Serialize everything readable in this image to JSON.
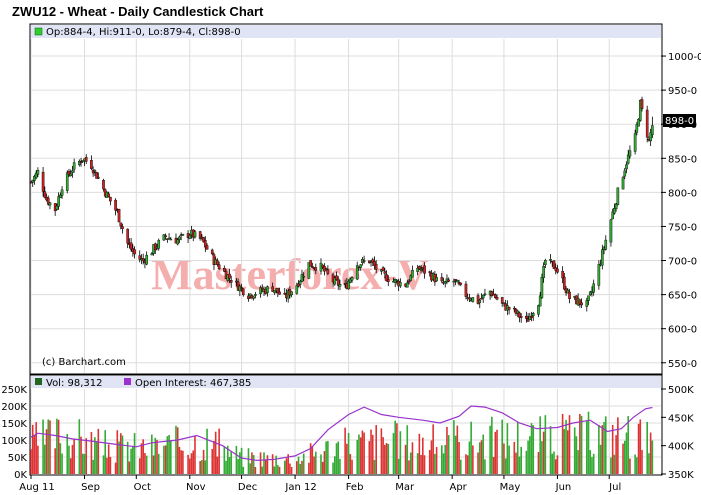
{
  "title": "ZWU12 - Wheat - Daily Candlestick Chart",
  "ohlc_label": "Op:884-4, Hi:911-0, Lo:879-4, Cl:898-0",
  "copyright": "(c) Barchart.com",
  "watermark": "Masterforex-V",
  "last_price_label": "898-0",
  "volume_label": "Vol: 98,312",
  "open_interest_label": "Open Interest: 467,385",
  "colors": {
    "up": "#33aa33",
    "down": "#cc2222",
    "volume_up": "#33aa33",
    "volume_down": "#dd3333",
    "open_interest": "#9933cc",
    "header_band": "#e0e4f4",
    "watermark": "#f4a0a0"
  },
  "chart_data": [
    {
      "type": "candlestick",
      "title": "ZWU12 - Wheat - Daily Candlestick Chart",
      "x_ticks": [
        "Aug 11",
        "Sep",
        "Oct",
        "Nov",
        "Dec",
        "Jan 12",
        "Feb",
        "Mar",
        "Apr",
        "May",
        "Jun",
        "Jul"
      ],
      "y_ticks": [
        "550-0",
        "600-0",
        "650-0",
        "700-0",
        "750-0",
        "800-0",
        "850-0",
        "900-0",
        "950-0",
        "1000-0"
      ],
      "ylim": [
        535,
        1025
      ],
      "axis_side": "right",
      "close_path": [
        [
          "2011-08-01",
          815
        ],
        [
          "2011-08-05",
          830
        ],
        [
          "2011-08-10",
          790
        ],
        [
          "2011-08-15",
          775
        ],
        [
          "2011-08-19",
          810
        ],
        [
          "2011-08-25",
          835
        ],
        [
          "2011-08-31",
          850
        ],
        [
          "2011-09-05",
          840
        ],
        [
          "2011-09-12",
          805
        ],
        [
          "2011-09-20",
          770
        ],
        [
          "2011-09-26",
          725
        ],
        [
          "2011-10-01",
          705
        ],
        [
          "2011-10-05",
          700
        ],
        [
          "2011-10-12",
          720
        ],
        [
          "2011-10-18",
          735
        ],
        [
          "2011-10-25",
          730
        ],
        [
          "2011-11-01",
          740
        ],
        [
          "2011-11-08",
          730
        ],
        [
          "2011-11-15",
          700
        ],
        [
          "2011-11-22",
          680
        ],
        [
          "2011-11-28",
          665
        ],
        [
          "2011-12-05",
          650
        ],
        [
          "2011-12-12",
          655
        ],
        [
          "2011-12-19",
          660
        ],
        [
          "2011-12-26",
          645
        ],
        [
          "2012-01-02",
          665
        ],
        [
          "2012-01-09",
          695
        ],
        [
          "2012-01-16",
          690
        ],
        [
          "2012-01-23",
          670
        ],
        [
          "2012-01-30",
          660
        ],
        [
          "2012-02-06",
          695
        ],
        [
          "2012-02-13",
          700
        ],
        [
          "2012-02-20",
          680
        ],
        [
          "2012-02-27",
          670
        ],
        [
          "2012-03-05",
          665
        ],
        [
          "2012-03-12",
          690
        ],
        [
          "2012-03-19",
          680
        ],
        [
          "2012-03-26",
          665
        ],
        [
          "2012-04-02",
          670
        ],
        [
          "2012-04-09",
          650
        ],
        [
          "2012-04-16",
          640
        ],
        [
          "2012-04-23",
          655
        ],
        [
          "2012-04-30",
          635
        ],
        [
          "2012-05-07",
          625
        ],
        [
          "2012-05-14",
          610
        ],
        [
          "2012-05-21",
          640
        ],
        [
          "2012-05-25",
          700
        ],
        [
          "2012-05-31",
          690
        ],
        [
          "2012-06-04",
          670
        ],
        [
          "2012-06-08",
          645
        ],
        [
          "2012-06-13",
          640
        ],
        [
          "2012-06-18",
          635
        ],
        [
          "2012-06-21",
          655
        ],
        [
          "2012-06-26",
          700
        ],
        [
          "2012-07-02",
          760
        ],
        [
          "2012-07-06",
          800
        ],
        [
          "2012-07-11",
          845
        ],
        [
          "2012-07-16",
          880
        ],
        [
          "2012-07-19",
          930
        ],
        [
          "2012-07-24",
          875
        ],
        [
          "2012-07-26",
          898
        ]
      ],
      "last": {
        "open": 884.5,
        "high": 911,
        "low": 879.5,
        "close": 898
      }
    },
    {
      "type": "bar+line",
      "x_ticks": [
        "Aug 11",
        "Sep",
        "Oct",
        "Nov",
        "Dec",
        "Jan 12",
        "Feb",
        "Mar",
        "Apr",
        "May",
        "Jun",
        "Jul"
      ],
      "left_axis_ticks": [
        "0K",
        "50K",
        "100K",
        "150K",
        "200K",
        "250K"
      ],
      "right_axis_ticks": [
        "350K",
        "400K",
        "450K",
        "500K"
      ],
      "volume_ylim": [
        0,
        250000
      ],
      "open_interest_ylim": [
        350000,
        500000
      ],
      "volume_level_path": [
        [
          "2011-08-01",
          100000
        ],
        [
          "2011-08-20",
          130000
        ],
        [
          "2011-09-10",
          90000
        ],
        [
          "2011-10-10",
          85000
        ],
        [
          "2011-11-10",
          110000
        ],
        [
          "2011-12-01",
          55000
        ],
        [
          "2012-01-01",
          50000
        ],
        [
          "2012-01-25",
          90000
        ],
        [
          "2012-02-20",
          110000
        ],
        [
          "2012-03-20",
          100000
        ],
        [
          "2012-04-20",
          115000
        ],
        [
          "2012-05-20",
          120000
        ],
        [
          "2012-06-15",
          125000
        ],
        [
          "2012-07-15",
          130000
        ],
        [
          "2012-07-26",
          98312
        ]
      ],
      "open_interest": [
        [
          "2011-08-01",
          415000
        ],
        [
          "2011-08-05",
          422000
        ],
        [
          "2011-08-15",
          418000
        ],
        [
          "2011-08-25",
          412000
        ],
        [
          "2011-09-05",
          408000
        ],
        [
          "2011-09-20",
          402000
        ],
        [
          "2011-10-01",
          398000
        ],
        [
          "2011-10-10",
          405000
        ],
        [
          "2011-10-25",
          410000
        ],
        [
          "2011-11-05",
          418000
        ],
        [
          "2011-11-20",
          400000
        ],
        [
          "2011-12-01",
          378000
        ],
        [
          "2011-12-10",
          374000
        ],
        [
          "2011-12-20",
          376000
        ],
        [
          "2012-01-01",
          382000
        ],
        [
          "2012-01-10",
          395000
        ],
        [
          "2012-01-20",
          428000
        ],
        [
          "2012-02-01",
          455000
        ],
        [
          "2012-02-10",
          468000
        ],
        [
          "2012-02-20",
          455000
        ],
        [
          "2012-03-01",
          450000
        ],
        [
          "2012-03-15",
          445000
        ],
        [
          "2012-03-25",
          440000
        ],
        [
          "2012-04-05",
          452000
        ],
        [
          "2012-04-12",
          470000
        ],
        [
          "2012-04-20",
          468000
        ],
        [
          "2012-04-30",
          458000
        ],
        [
          "2012-05-10",
          440000
        ],
        [
          "2012-05-20",
          430000
        ],
        [
          "2012-06-01",
          432000
        ],
        [
          "2012-06-10",
          440000
        ],
        [
          "2012-06-20",
          445000
        ],
        [
          "2012-06-30",
          425000
        ],
        [
          "2012-07-08",
          430000
        ],
        [
          "2012-07-15",
          450000
        ],
        [
          "2012-07-22",
          465000
        ],
        [
          "2012-07-26",
          467385
        ]
      ]
    }
  ]
}
